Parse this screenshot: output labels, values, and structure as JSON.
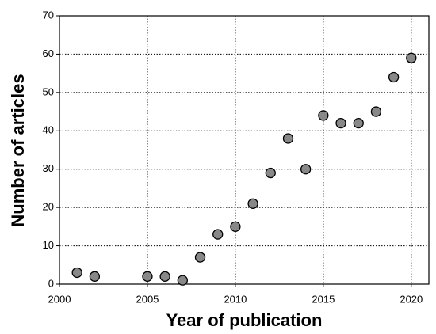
{
  "chart_data": {
    "type": "scatter",
    "x_label": "Year of publication",
    "y_label": "Number of articles",
    "x": [
      2001,
      2002,
      2005,
      2006,
      2007,
      2008,
      2009,
      2010,
      2011,
      2012,
      2013,
      2014,
      2015,
      2016,
      2017,
      2018,
      2019,
      2020
    ],
    "values": [
      3,
      2,
      2,
      2,
      1,
      7,
      13,
      15,
      21,
      29,
      38,
      30,
      44,
      42,
      42,
      45,
      54,
      59
    ],
    "color": "#888888",
    "xlim": [
      2000,
      2021
    ],
    "xticks": [
      2000,
      2005,
      2010,
      2015,
      2020
    ],
    "ylim": [
      0,
      70
    ],
    "yticks": [
      0,
      10,
      20,
      30,
      40,
      50,
      60,
      70
    ],
    "grid": true
  }
}
